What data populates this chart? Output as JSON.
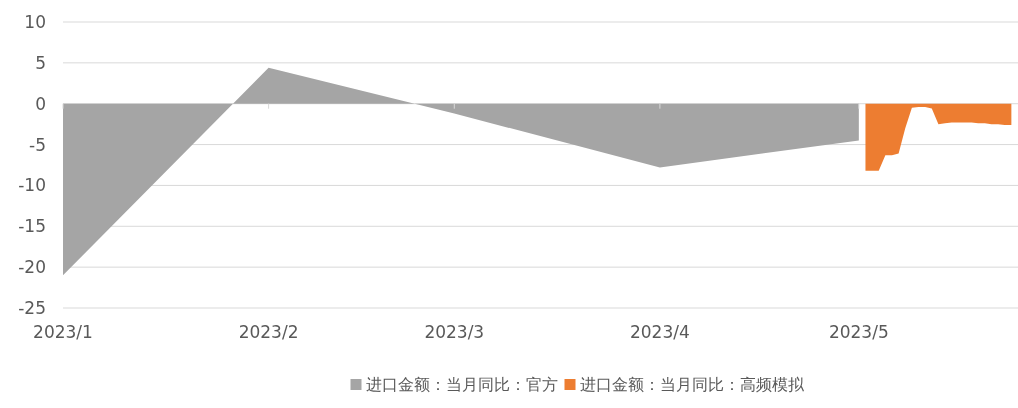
{
  "chart_data": {
    "type": "area",
    "series": [
      {
        "name": "进口金额：当月同比：官方",
        "color": "#a5a5a5",
        "x": [
          "2023-01-01",
          "2023-02-01",
          "2023-03-01",
          "2023-04-01",
          "2023-05-01"
        ],
        "values": [
          -21,
          4.4,
          -1.2,
          -7.8,
          -4.5
        ]
      },
      {
        "name": "进口金额：当月同比：高频模拟",
        "color": "#ed7d31",
        "x": [
          "2023-05-02",
          "2023-05-03",
          "2023-05-04",
          "2023-05-05",
          "2023-05-06",
          "2023-05-07",
          "2023-05-08",
          "2023-05-09",
          "2023-05-10",
          "2023-05-11",
          "2023-05-12",
          "2023-05-13",
          "2023-05-14",
          "2023-05-15",
          "2023-05-16",
          "2023-05-17",
          "2023-05-18",
          "2023-05-19",
          "2023-05-20",
          "2023-05-21",
          "2023-05-22",
          "2023-05-23",
          "2023-05-24"
        ],
        "values": [
          -8.2,
          -8.2,
          -8.2,
          -6.3,
          -6.3,
          -6.1,
          -3,
          -0.5,
          -0.4,
          -0.4,
          -0.6,
          -2.5,
          -2.4,
          -2.3,
          -2.3,
          -2.3,
          -2.3,
          -2.4,
          -2.4,
          -2.5,
          -2.5,
          -2.6,
          -2.6
        ]
      }
    ],
    "xlim": [
      "2023-01-01",
      "2023-05-25"
    ],
    "xticks": [
      {
        "value": "2023-01-01",
        "label": "2023/1"
      },
      {
        "value": "2023-02-01",
        "label": "2023/2"
      },
      {
        "value": "2023-03-01",
        "label": "2023/3"
      },
      {
        "value": "2023-04-01",
        "label": "2023/4"
      },
      {
        "value": "2023-05-01",
        "label": "2023/5"
      }
    ],
    "ylim": [
      -25,
      10
    ],
    "yticks": [
      -25,
      -20,
      -15,
      -10,
      -5,
      0,
      5,
      10
    ],
    "grid": "y",
    "legend": "bottom"
  }
}
